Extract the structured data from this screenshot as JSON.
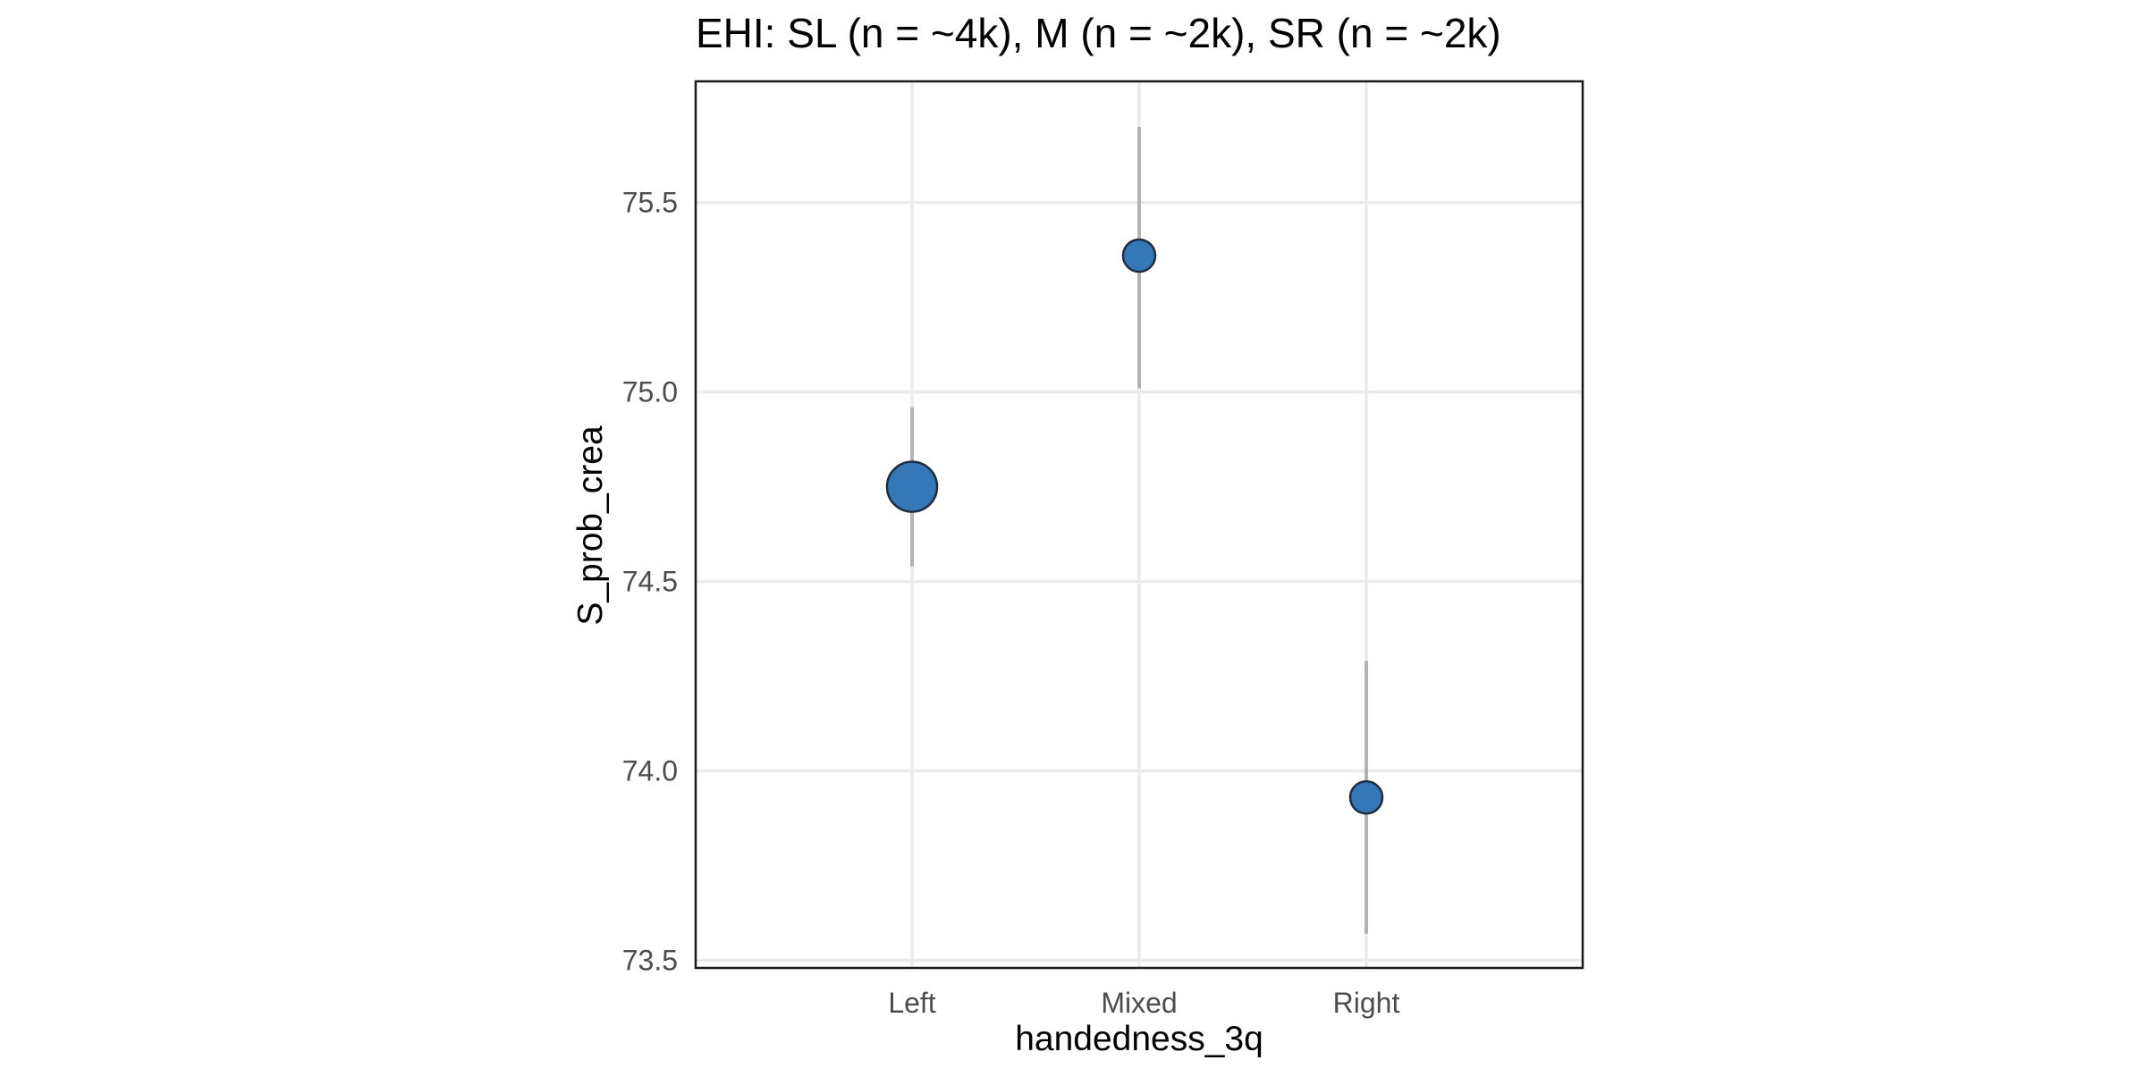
{
  "chart_data": {
    "type": "scatter",
    "title": "EHI: SL (n = ~4k), M (n = ~2k), SR (n = ~2k)",
    "xlabel": "handedness_3q",
    "ylabel": "S_prob_crea",
    "categories": [
      "Left",
      "Mixed",
      "Right"
    ],
    "ylim": [
      73.48,
      75.82
    ],
    "yticks": [
      73.5,
      74.0,
      74.5,
      75.0,
      75.5
    ],
    "ytick_labels": [
      "73.5",
      "74.0",
      "74.5",
      "75.0",
      "75.5"
    ],
    "grid": true,
    "legend": "none",
    "point_color": "#3478b8",
    "error_bar_color": "#b3b3b3",
    "points": [
      {
        "category": "Left",
        "y": 74.75,
        "ymin": 74.54,
        "ymax": 74.96,
        "n": "~4k"
      },
      {
        "category": "Mixed",
        "y": 75.36,
        "ymin": 75.01,
        "ymax": 75.7,
        "n": "~2k"
      },
      {
        "category": "Right",
        "y": 73.93,
        "ymin": 73.57,
        "ymax": 74.29,
        "n": "~2k"
      }
    ]
  }
}
